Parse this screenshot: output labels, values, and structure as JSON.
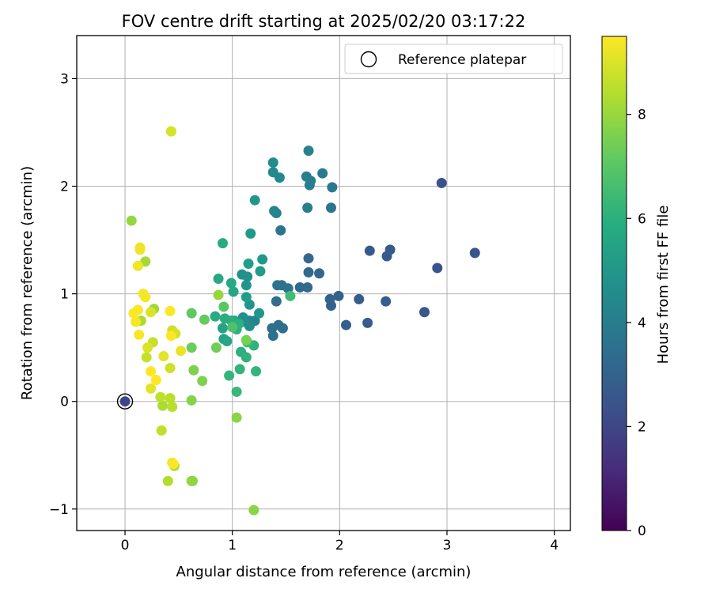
{
  "chart_data": {
    "type": "scatter",
    "title": "FOV centre drift starting at 2025/02/20 03:17:22",
    "xlabel": "Angular distance from reference (arcmin)",
    "ylabel": "Rotation from reference (arcmin)",
    "xlim": [
      -0.45,
      4.15
    ],
    "ylim": [
      -1.2,
      3.4
    ],
    "xticks": [
      0,
      1,
      2,
      3,
      4
    ],
    "yticks": [
      -1,
      0,
      1,
      2,
      3
    ],
    "grid": true,
    "legend": {
      "position": "top-right",
      "entries": [
        "Reference platepar"
      ]
    },
    "colorbar": {
      "label": "Hours from first FF file",
      "min": 0,
      "max": 9.5,
      "ticks": [
        0,
        2,
        4,
        6,
        8
      ],
      "colormap": "viridis"
    },
    "reference_point": {
      "x": 0.0,
      "y": 0.0
    },
    "points": [
      {
        "x": 0.0,
        "y": 0.0,
        "h": 2.0
      },
      {
        "x": 2.95,
        "y": 2.03,
        "h": 2.4
      },
      {
        "x": 3.26,
        "y": 1.38,
        "h": 2.5
      },
      {
        "x": 2.91,
        "y": 1.24,
        "h": 2.5
      },
      {
        "x": 2.79,
        "y": 0.83,
        "h": 2.6
      },
      {
        "x": 2.47,
        "y": 1.41,
        "h": 2.7
      },
      {
        "x": 2.44,
        "y": 1.35,
        "h": 2.7
      },
      {
        "x": 2.28,
        "y": 1.4,
        "h": 2.7
      },
      {
        "x": 2.43,
        "y": 0.93,
        "h": 2.8
      },
      {
        "x": 2.26,
        "y": 0.73,
        "h": 2.8
      },
      {
        "x": 2.18,
        "y": 0.95,
        "h": 2.8
      },
      {
        "x": 2.06,
        "y": 0.71,
        "h": 2.9
      },
      {
        "x": 1.99,
        "y": 0.98,
        "h": 2.9
      },
      {
        "x": 1.91,
        "y": 0.95,
        "h": 3.0
      },
      {
        "x": 1.92,
        "y": 0.89,
        "h": 3.0
      },
      {
        "x": 1.81,
        "y": 1.19,
        "h": 3.1
      },
      {
        "x": 1.71,
        "y": 1.2,
        "h": 3.2
      },
      {
        "x": 1.71,
        "y": 1.33,
        "h": 3.2
      },
      {
        "x": 1.7,
        "y": 1.06,
        "h": 3.3
      },
      {
        "x": 1.63,
        "y": 1.06,
        "h": 3.3
      },
      {
        "x": 1.41,
        "y": 0.93,
        "h": 3.4
      },
      {
        "x": 1.47,
        "y": 0.68,
        "h": 3.4
      },
      {
        "x": 1.43,
        "y": 0.71,
        "h": 3.4
      },
      {
        "x": 1.38,
        "y": 0.61,
        "h": 3.5
      },
      {
        "x": 1.37,
        "y": 0.68,
        "h": 3.5
      },
      {
        "x": 1.52,
        "y": 1.05,
        "h": 3.6
      },
      {
        "x": 1.46,
        "y": 1.08,
        "h": 3.6
      },
      {
        "x": 1.42,
        "y": 1.08,
        "h": 3.6
      },
      {
        "x": 1.45,
        "y": 1.59,
        "h": 3.7
      },
      {
        "x": 1.92,
        "y": 1.8,
        "h": 3.7
      },
      {
        "x": 1.93,
        "y": 1.99,
        "h": 3.8
      },
      {
        "x": 1.84,
        "y": 2.12,
        "h": 3.9
      },
      {
        "x": 1.73,
        "y": 2.05,
        "h": 4.0
      },
      {
        "x": 1.72,
        "y": 2.01,
        "h": 4.0
      },
      {
        "x": 1.69,
        "y": 2.09,
        "h": 4.1
      },
      {
        "x": 1.7,
        "y": 1.8,
        "h": 4.1
      },
      {
        "x": 1.71,
        "y": 2.33,
        "h": 4.2
      },
      {
        "x": 1.41,
        "y": 1.75,
        "h": 4.2
      },
      {
        "x": 1.39,
        "y": 1.77,
        "h": 4.3
      },
      {
        "x": 1.21,
        "y": 0.75,
        "h": 4.3
      },
      {
        "x": 1.16,
        "y": 0.75,
        "h": 4.4
      },
      {
        "x": 1.44,
        "y": 2.08,
        "h": 4.4
      },
      {
        "x": 1.38,
        "y": 2.13,
        "h": 4.5
      },
      {
        "x": 1.38,
        "y": 2.22,
        "h": 4.6
      },
      {
        "x": 1.16,
        "y": 0.7,
        "h": 4.6
      },
      {
        "x": 1.11,
        "y": 0.74,
        "h": 4.7
      },
      {
        "x": 1.1,
        "y": 0.78,
        "h": 4.7
      },
      {
        "x": 1.09,
        "y": 1.18,
        "h": 4.8
      },
      {
        "x": 1.14,
        "y": 1.16,
        "h": 4.8
      },
      {
        "x": 1.16,
        "y": 0.9,
        "h": 4.9
      },
      {
        "x": 1.13,
        "y": 1.08,
        "h": 4.9
      },
      {
        "x": 1.25,
        "y": 0.82,
        "h": 5.0
      },
      {
        "x": 1.21,
        "y": 1.87,
        "h": 5.0
      },
      {
        "x": 1.17,
        "y": 1.56,
        "h": 5.1
      },
      {
        "x": 1.28,
        "y": 1.32,
        "h": 5.1
      },
      {
        "x": 1.26,
        "y": 1.21,
        "h": 5.2
      },
      {
        "x": 1.13,
        "y": 0.97,
        "h": 5.3
      },
      {
        "x": 1.15,
        "y": 1.28,
        "h": 5.3
      },
      {
        "x": 1.02,
        "y": 0.75,
        "h": 5.4
      },
      {
        "x": 0.99,
        "y": 0.75,
        "h": 5.4
      },
      {
        "x": 0.91,
        "y": 0.68,
        "h": 5.5
      },
      {
        "x": 0.92,
        "y": 0.58,
        "h": 5.5
      },
      {
        "x": 0.95,
        "y": 0.56,
        "h": 5.6
      },
      {
        "x": 1.01,
        "y": 1.02,
        "h": 5.6
      },
      {
        "x": 0.99,
        "y": 1.1,
        "h": 5.7
      },
      {
        "x": 0.87,
        "y": 1.14,
        "h": 5.7
      },
      {
        "x": 0.91,
        "y": 1.47,
        "h": 5.8
      },
      {
        "x": 0.84,
        "y": 0.79,
        "h": 5.8
      },
      {
        "x": 0.93,
        "y": 0.77,
        "h": 5.9
      },
      {
        "x": 1.0,
        "y": 0.74,
        "h": 5.9
      },
      {
        "x": 1.04,
        "y": 0.67,
        "h": 6.0
      },
      {
        "x": 1.06,
        "y": 0.72,
        "h": 6.0
      },
      {
        "x": 1.08,
        "y": 0.46,
        "h": 6.0
      },
      {
        "x": 1.13,
        "y": 0.41,
        "h": 6.1
      },
      {
        "x": 1.2,
        "y": 0.52,
        "h": 6.1
      },
      {
        "x": 1.22,
        "y": 0.28,
        "h": 6.2
      },
      {
        "x": 1.07,
        "y": 0.3,
        "h": 6.2
      },
      {
        "x": 0.97,
        "y": 0.24,
        "h": 6.3
      },
      {
        "x": 1.04,
        "y": 0.09,
        "h": 6.4
      },
      {
        "x": 1.14,
        "y": 0.55,
        "h": 6.5
      },
      {
        "x": 1.54,
        "y": 0.98,
        "h": 6.5
      },
      {
        "x": 1.0,
        "y": 0.69,
        "h": 6.8
      },
      {
        "x": 0.92,
        "y": 0.88,
        "h": 7.0
      },
      {
        "x": 0.62,
        "y": 0.82,
        "h": 7.1
      },
      {
        "x": 0.74,
        "y": 0.76,
        "h": 7.2
      },
      {
        "x": 0.62,
        "y": 0.5,
        "h": 7.3
      },
      {
        "x": 0.85,
        "y": 0.5,
        "h": 7.4
      },
      {
        "x": 1.13,
        "y": 0.57,
        "h": 7.5
      },
      {
        "x": 0.72,
        "y": 0.19,
        "h": 7.6
      },
      {
        "x": 0.64,
        "y": 0.29,
        "h": 7.6
      },
      {
        "x": 0.62,
        "y": 0.01,
        "h": 7.7
      },
      {
        "x": 1.04,
        "y": -0.15,
        "h": 7.8
      },
      {
        "x": 1.2,
        "y": -1.01,
        "h": 7.8
      },
      {
        "x": 0.62,
        "y": -0.74,
        "h": 7.9
      },
      {
        "x": 0.63,
        "y": -0.74,
        "h": 7.9
      },
      {
        "x": 0.87,
        "y": 0.99,
        "h": 8.0
      },
      {
        "x": 0.06,
        "y": 1.68,
        "h": 8.0
      },
      {
        "x": 0.27,
        "y": 0.86,
        "h": 8.1
      },
      {
        "x": 0.19,
        "y": 1.3,
        "h": 8.2
      },
      {
        "x": 0.15,
        "y": 0.75,
        "h": 8.3
      },
      {
        "x": 0.35,
        "y": -0.04,
        "h": 8.3
      },
      {
        "x": 0.4,
        "y": -0.74,
        "h": 8.4
      },
      {
        "x": 0.46,
        "y": -0.6,
        "h": 8.4
      },
      {
        "x": 0.42,
        "y": 0.03,
        "h": 8.5
      },
      {
        "x": 0.44,
        "y": -0.05,
        "h": 8.5
      },
      {
        "x": 0.33,
        "y": 0.04,
        "h": 8.6
      },
      {
        "x": 0.34,
        "y": -0.27,
        "h": 8.6
      },
      {
        "x": 0.26,
        "y": 0.55,
        "h": 8.7
      },
      {
        "x": 0.2,
        "y": 0.41,
        "h": 8.7
      },
      {
        "x": 0.42,
        "y": 0.31,
        "h": 8.8
      },
      {
        "x": 0.44,
        "y": 0.66,
        "h": 8.8
      },
      {
        "x": 0.47,
        "y": 0.63,
        "h": 8.9
      },
      {
        "x": 0.43,
        "y": 2.51,
        "h": 8.9
      },
      {
        "x": 0.24,
        "y": 0.83,
        "h": 9.0
      },
      {
        "x": 0.21,
        "y": 0.5,
        "h": 9.0
      },
      {
        "x": 0.24,
        "y": 0.12,
        "h": 9.1
      },
      {
        "x": 0.36,
        "y": 0.42,
        "h": 9.1
      },
      {
        "x": 0.52,
        "y": 0.47,
        "h": 9.2
      },
      {
        "x": 0.44,
        "y": -0.57,
        "h": 9.2
      },
      {
        "x": 0.12,
        "y": 1.26,
        "h": 9.3
      },
      {
        "x": 0.14,
        "y": 1.41,
        "h": 9.3
      },
      {
        "x": 0.14,
        "y": 1.43,
        "h": 9.3
      },
      {
        "x": 0.1,
        "y": 0.74,
        "h": 9.4
      },
      {
        "x": 0.13,
        "y": 0.62,
        "h": 9.4
      },
      {
        "x": 0.19,
        "y": 0.97,
        "h": 9.4
      },
      {
        "x": 0.17,
        "y": 1.0,
        "h": 9.4
      },
      {
        "x": 0.12,
        "y": 0.85,
        "h": 9.45
      },
      {
        "x": 0.08,
        "y": 0.82,
        "h": 9.45
      },
      {
        "x": 0.42,
        "y": 0.84,
        "h": 9.45
      },
      {
        "x": 0.43,
        "y": 0.61,
        "h": 9.5
      },
      {
        "x": 0.24,
        "y": 0.28,
        "h": 9.5
      },
      {
        "x": 0.29,
        "y": 0.2,
        "h": 9.5
      },
      {
        "x": 0.45,
        "y": -0.58,
        "h": 9.5
      }
    ]
  }
}
